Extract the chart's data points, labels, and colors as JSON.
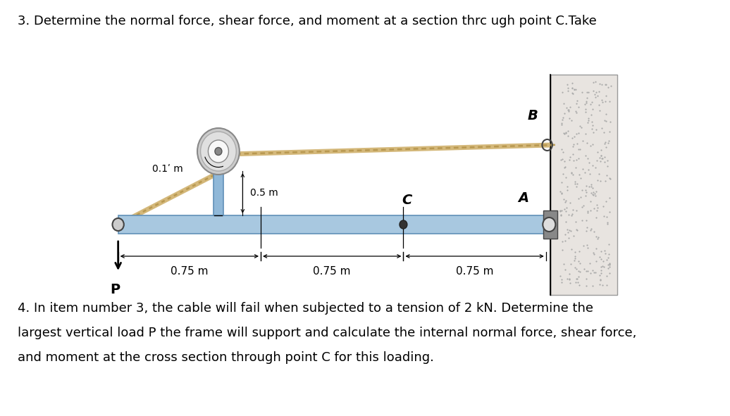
{
  "title3": "3. Determine the normal force, shear force, and moment at a section thrc ugh point C.Take",
  "title4_line1": "4. In item number 3, the cable will fail when subjected to a tension of 2 kN. Determine the",
  "title4_line2": "largest vertical load P the frame will support and calculate the internal normal force, shear force,",
  "title4_line3": "and moment at the cross section through point C for this loading.",
  "background_color": "#ffffff",
  "beam_color": "#a8c8e0",
  "col_color": "#90b8d8",
  "rope_color": "#d4b87a",
  "rope_dark": "#b89850",
  "wall_fill": "#e8e4e0",
  "wall_dots": "#c8c4c0",
  "label_01m": "0.1ʹ m",
  "label_05m": "0.5 m",
  "label_075a": "0.75 m",
  "label_075b": "0.75 m",
  "label_075c": "0.75 m",
  "label_B": "B",
  "label_A": "A",
  "label_C": "C",
  "label_P": "P",
  "fontsize_main": 13,
  "fontsize_label": 13,
  "fontsize_dim": 11
}
